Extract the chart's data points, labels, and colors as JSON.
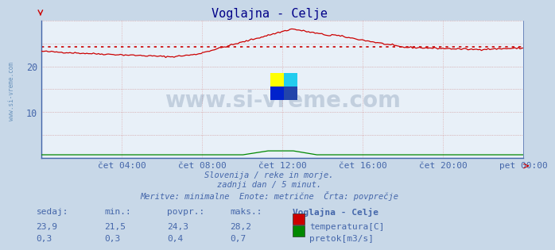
{
  "title": "Voglajna - Celje",
  "bg_color": "#c8d8e8",
  "plot_bg_color": "#e8f0f8",
  "grid_color_h": "#cc8888",
  "grid_color_v": "#ddaaaa",
  "temp_color": "#cc0000",
  "flow_color": "#008800",
  "avg_line_color": "#cc0000",
  "avg_temp": 24.3,
  "ylim": [
    0,
    30
  ],
  "yticks": [
    10,
    20
  ],
  "xlabel_color": "#4466aa",
  "title_color": "#000088",
  "watermark_text": "www.si-vreme.com",
  "watermark_color": "#1a3a6b",
  "watermark_alpha": 0.18,
  "subtitle_lines": [
    "Slovenija / reke in morje.",
    "zadnji dan / 5 minut.",
    "Meritve: minimalne  Enote: metrične  Črta: povprečje"
  ],
  "subtitle_color": "#4466aa",
  "table_headers": [
    "sedaj:",
    "min.:",
    "povpr.:",
    "maks.:",
    "Voglajna - Celje"
  ],
  "table_row1_values": [
    "23,9",
    "21,5",
    "24,3",
    "28,2"
  ],
  "table_row1_label": "temperatura[C]",
  "table_row1_color": "#cc0000",
  "table_row2_values": [
    "0,3",
    "0,3",
    "0,4",
    "0,7"
  ],
  "table_row2_label": "pretok[m3/s]",
  "table_row2_color": "#008800",
  "table_color": "#4466aa",
  "table_header_bold": "Voglajna - Celje",
  "xtick_labels": [
    "čet 04:00",
    "čet 08:00",
    "čet 12:00",
    "čet 16:00",
    "čet 20:00",
    "pet 00:00"
  ],
  "spine_color": "#4466aa",
  "left_watermark": "www.si-vreme.com",
  "left_watermark_color": "#4477aa",
  "n_points": 288,
  "logo_colors": [
    "#ffff00",
    "#00ccff",
    "#0033cc",
    "#003399"
  ]
}
